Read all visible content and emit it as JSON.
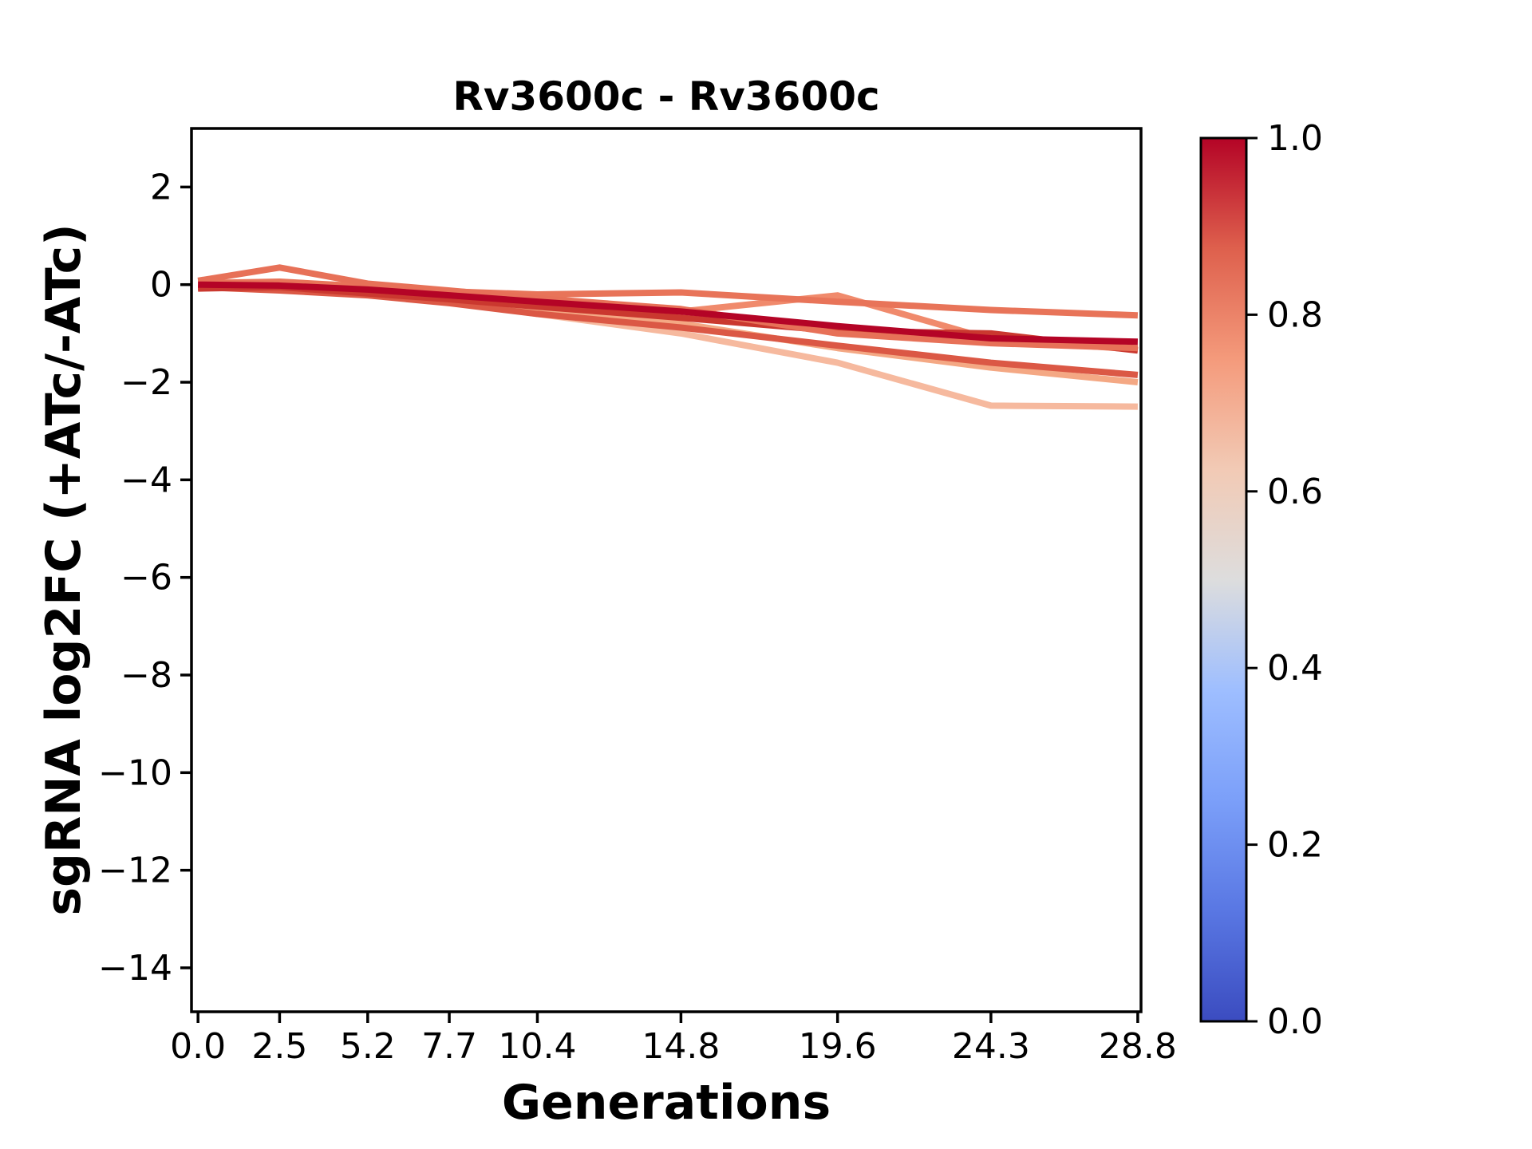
{
  "chart_data": {
    "type": "line",
    "title": "Rv3600c - Rv3600c",
    "xlabel": "Generations",
    "ylabel": "sgRNA log2FC (+ATc/-ATc)",
    "x": [
      0.0,
      2.5,
      5.2,
      7.7,
      10.4,
      14.8,
      19.6,
      24.3,
      28.8
    ],
    "x_tick_labels": [
      "0.0",
      "2.5",
      "5.2",
      "7.7",
      "10.4",
      "14.8",
      "19.6",
      "24.3",
      "28.8"
    ],
    "y_tick_values": [
      2,
      0,
      -2,
      -4,
      -6,
      -8,
      -10,
      -12,
      -14
    ],
    "y_tick_labels": [
      "2",
      "0",
      "−2",
      "−4",
      "−6",
      "−8",
      "−10",
      "−12",
      "−14"
    ],
    "xlim": [
      -0.2,
      28.9
    ],
    "ylim": [
      -14.9,
      3.2
    ],
    "grid": false,
    "line_width": 8,
    "axis_color": "#000000",
    "background_color": "#ffffff",
    "series": [
      {
        "id": "line-1",
        "colorbar_value": 0.62,
        "color": "#f6b99e",
        "values": [
          0.0,
          -0.06,
          -0.16,
          -0.35,
          -0.6,
          -1.0,
          -1.6,
          -2.48,
          -2.5
        ]
      },
      {
        "id": "line-2",
        "colorbar_value": 0.68,
        "color": "#f4a884",
        "values": [
          0.05,
          0.0,
          -0.12,
          -0.32,
          -0.5,
          -0.8,
          -1.3,
          -1.7,
          -2.0
        ]
      },
      {
        "id": "line-3",
        "colorbar_value": 0.78,
        "color": "#f08a6c",
        "values": [
          -0.04,
          -0.08,
          -0.15,
          -0.28,
          -0.42,
          -0.55,
          -0.22,
          -1.12,
          -1.33
        ]
      },
      {
        "id": "line-4",
        "colorbar_value": 0.84,
        "color": "#e87459",
        "values": [
          0.03,
          0.06,
          -0.04,
          -0.14,
          -0.2,
          -0.16,
          -0.35,
          -0.52,
          -0.63
        ]
      },
      {
        "id": "line-5",
        "colorbar_value": 0.9,
        "color": "#db5845",
        "values": [
          -0.05,
          -0.12,
          -0.22,
          -0.38,
          -0.6,
          -0.88,
          -1.25,
          -1.6,
          -1.85
        ]
      },
      {
        "id": "line-6",
        "colorbar_value": 0.95,
        "color": "#ca382f",
        "values": [
          -0.08,
          -0.05,
          -0.18,
          -0.3,
          -0.45,
          -0.68,
          -0.95,
          -1.0,
          -1.35
        ]
      },
      {
        "id": "line-7",
        "colorbar_value": 0.86,
        "color": "#e77158",
        "values": [
          0.08,
          0.35,
          0.02,
          -0.12,
          -0.28,
          -0.5,
          -1.0,
          -1.2,
          -1.3
        ]
      },
      {
        "id": "line-8",
        "colorbar_value": 1.0,
        "color": "#b40426",
        "values": [
          0.0,
          -0.02,
          -0.1,
          -0.22,
          -0.35,
          -0.55,
          -0.85,
          -1.1,
          -1.17
        ]
      }
    ],
    "colorbar": {
      "colormap": "coolwarm",
      "orientation": "vertical",
      "position": "right",
      "range": [
        0.0,
        1.0
      ],
      "tick_values": [
        1.0,
        0.8,
        0.6,
        0.4,
        0.2,
        0.0
      ],
      "tick_labels": [
        "1.0",
        "0.8",
        "0.6",
        "0.4",
        "0.2",
        "0.0"
      ],
      "stops": [
        [
          0.0,
          "#3b4cc0"
        ],
        [
          0.125,
          "#5977e3"
        ],
        [
          0.25,
          "#7b9ff9"
        ],
        [
          0.375,
          "#9ebeff"
        ],
        [
          0.5,
          "#dddddd"
        ],
        [
          0.625,
          "#f2cab5"
        ],
        [
          0.75,
          "#f49a7b"
        ],
        [
          0.875,
          "#de604d"
        ],
        [
          1.0,
          "#b40426"
        ]
      ]
    }
  }
}
